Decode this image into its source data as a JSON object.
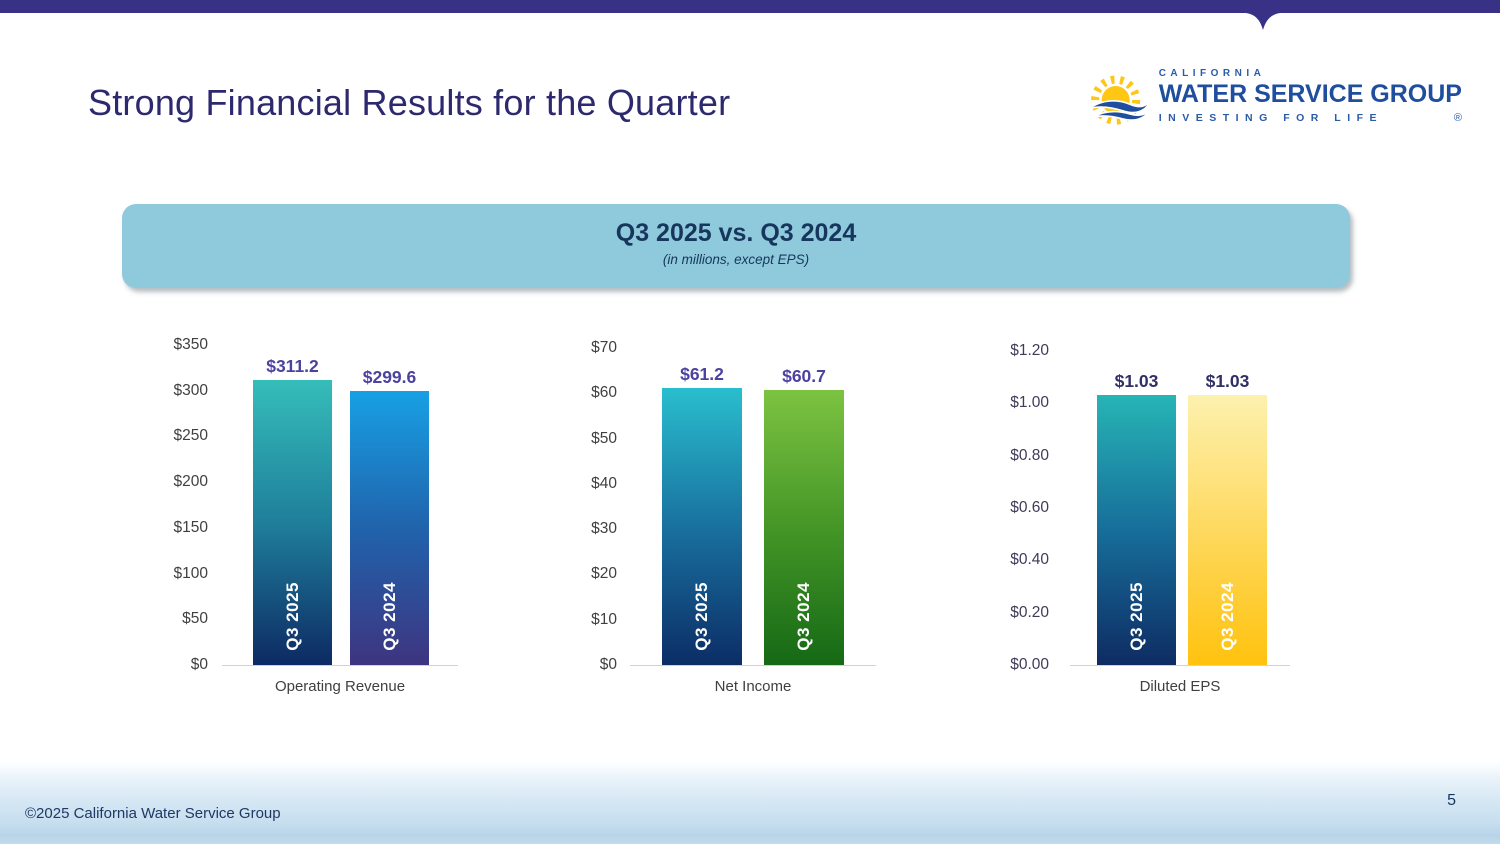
{
  "slide": {
    "title": "Strong Financial Results for the Quarter",
    "footer_copyright": "©2025 California Water Service Group",
    "page_number": "5",
    "accent_bar_color": "#393186"
  },
  "logo": {
    "california": "CALIFORNIA",
    "name": "WATER SERVICE GROUP",
    "tagline": "INVESTING FOR LIFE",
    "registered_mark": "®",
    "sun_color": "#FFC614",
    "wave_color": "#1F4E9E"
  },
  "banner": {
    "title": "Q3 2025 vs. Q3 2024",
    "subtitle": "(in millions, except EPS)",
    "background": "#8FCADC",
    "text_color": "#17365D"
  },
  "chart_data": [
    {
      "type": "bar",
      "xlabel": "Operating Revenue",
      "categories": [
        "Q3 2025",
        "Q3 2024"
      ],
      "values": [
        311.2,
        299.6
      ],
      "value_labels": [
        "$311.2",
        "$299.6"
      ],
      "tick_labels": [
        "$0",
        "$50",
        "$100",
        "$150",
        "$200",
        "$250",
        "$300",
        "$350"
      ],
      "ylim": [
        0,
        350
      ],
      "grid": false,
      "legend": "none",
      "value_label_color": "#4C429F",
      "tick_color": "#404040",
      "bar_gradients": [
        [
          "#35BDB9",
          "#1F7F9B",
          "#0D2A63"
        ],
        [
          "#18A0E4",
          "#2063AC",
          "#3E3480"
        ]
      ]
    },
    {
      "type": "bar",
      "xlabel": "Net Income",
      "categories": [
        "Q3 2025",
        "Q3 2024"
      ],
      "values": [
        61.2,
        60.7
      ],
      "value_labels": [
        "$61.2",
        "$60.7"
      ],
      "tick_labels": [
        "$0",
        "$10",
        "$20",
        "$30",
        "$40",
        "$50",
        "$60",
        "$70"
      ],
      "ylim": [
        0,
        70
      ],
      "grid": false,
      "legend": "none",
      "value_label_color": "#4C429F",
      "tick_color": "#404040",
      "bar_gradients": [
        [
          "#29BECE",
          "#19719F",
          "#0C2D66"
        ],
        [
          "#7DC342",
          "#459627",
          "#156915"
        ]
      ]
    },
    {
      "type": "bar",
      "xlabel": "Diluted EPS",
      "categories": [
        "Q3 2025",
        "Q3 2024"
      ],
      "values": [
        1.03,
        1.03
      ],
      "value_labels": [
        "$1.03",
        "$1.03"
      ],
      "tick_labels": [
        "$0.00",
        "$0.20",
        "$0.40",
        "$0.60",
        "$0.80",
        "$1.00",
        "$1.20"
      ],
      "ylim": [
        0,
        1.2
      ],
      "grid": false,
      "legend": "none",
      "value_label_color": "#322F66",
      "tick_color": "#3E3C58",
      "bar_gradients": [
        [
          "#27B5B5",
          "#176E9A",
          "#0E2C63"
        ],
        [
          "#FDF1AF",
          "#FED95F",
          "#FFC20E"
        ]
      ]
    }
  ]
}
